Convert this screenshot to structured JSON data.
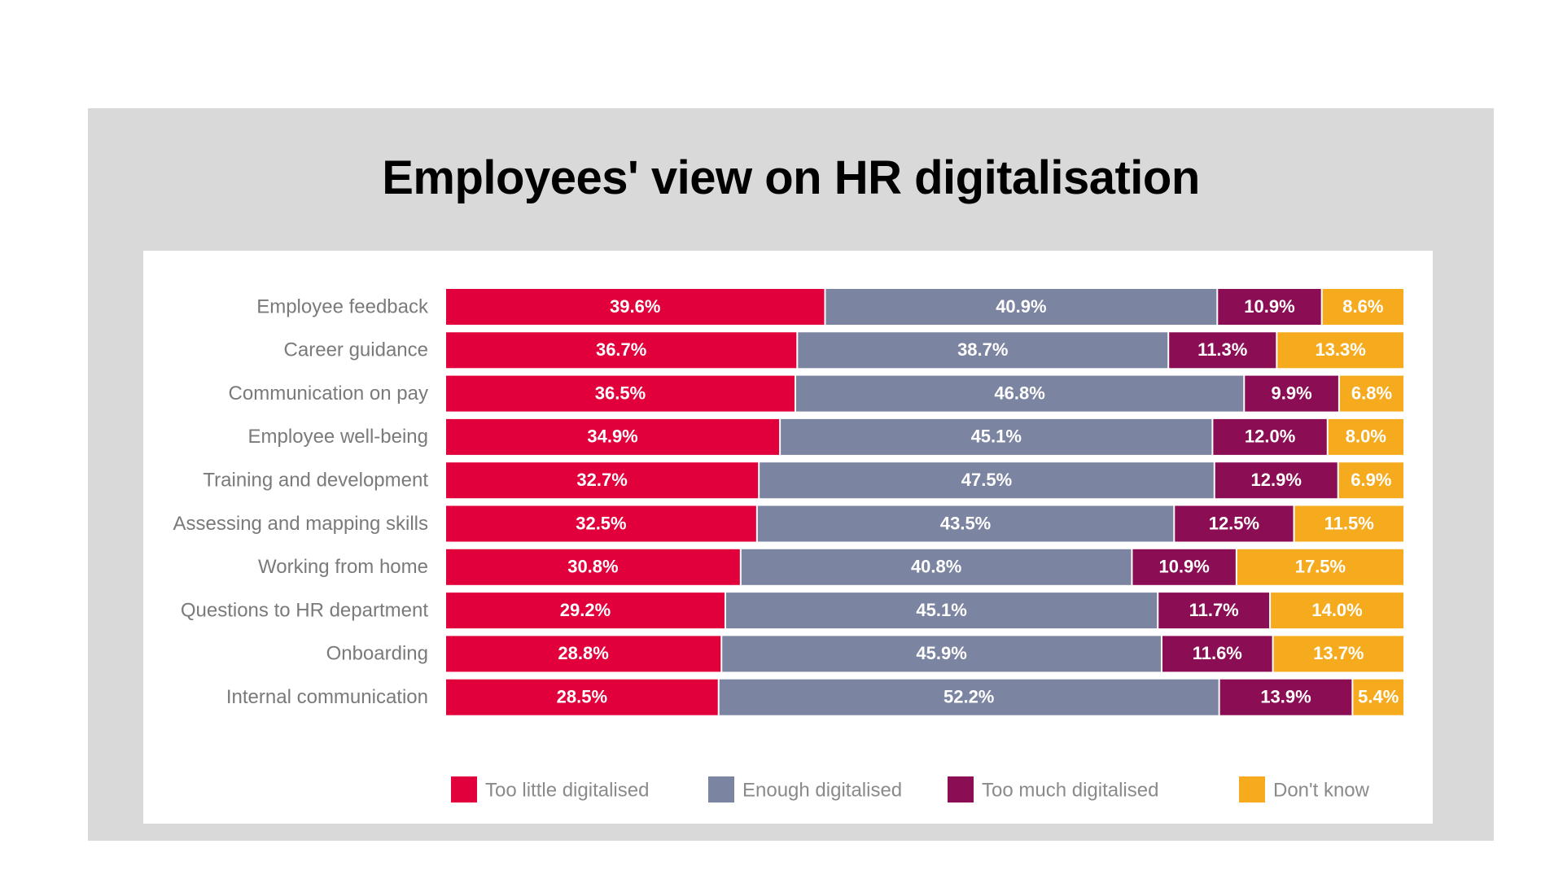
{
  "title": "Employees' view on HR digitalisation",
  "chart_data": {
    "type": "bar",
    "orientation": "horizontal",
    "stacked": true,
    "title": "Employees' view on HR digitalisation",
    "categories": [
      "Employee feedback",
      "Career guidance",
      "Communication on pay",
      "Employee well-being",
      "Training and development",
      "Assessing and mapping skills",
      "Working from home",
      "Questions to HR department",
      "Onboarding",
      "Internal communication"
    ],
    "series": [
      {
        "name": "Too little digitalised",
        "color": "#e1003b",
        "values": [
          39.6,
          36.7,
          36.5,
          34.9,
          32.7,
          32.5,
          30.8,
          29.2,
          28.8,
          28.5
        ]
      },
      {
        "name": "Enough digitalised",
        "color": "#7b84a0",
        "values": [
          40.9,
          38.7,
          46.8,
          45.1,
          47.5,
          43.5,
          40.8,
          45.1,
          45.9,
          52.2
        ]
      },
      {
        "name": "Too much digitalised",
        "color": "#8b0d54",
        "values": [
          10.9,
          11.3,
          9.9,
          12.0,
          12.9,
          12.5,
          10.9,
          11.7,
          11.6,
          13.9
        ]
      },
      {
        "name": "Don't know",
        "color": "#f5ab1d",
        "values": [
          8.6,
          13.3,
          6.8,
          8.0,
          6.9,
          11.5,
          17.5,
          14.0,
          13.7,
          5.4
        ]
      }
    ],
    "value_format": "percent_one_decimal",
    "legend": "bottom",
    "grid": false
  }
}
